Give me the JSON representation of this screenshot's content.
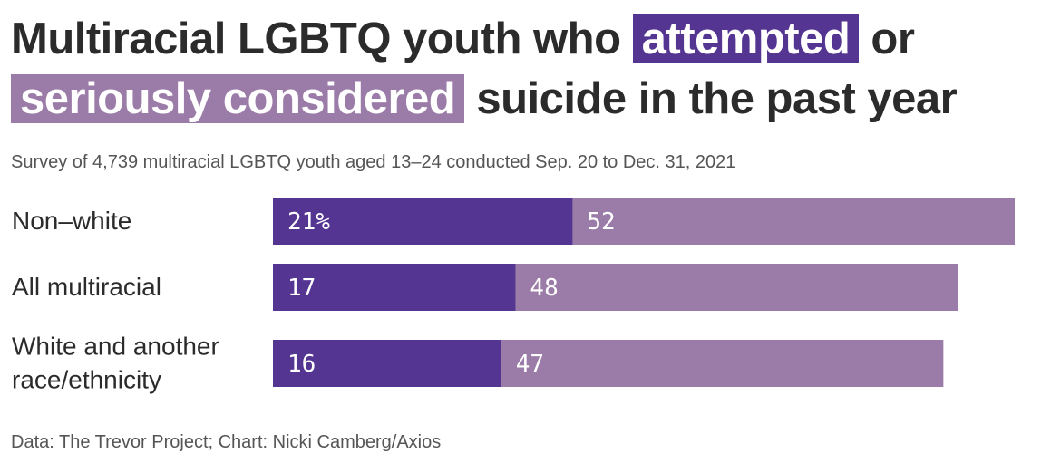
{
  "title": {
    "prefix": "Multiracial LGBTQ youth who",
    "attempted": "attempted",
    "mid": "or",
    "considered": "seriously considered",
    "suffix": "suicide in the past year"
  },
  "subtitle": "Survey of 4,739 multiracial LGBTQ youth aged 13–24 conducted Sep. 20 to Dec. 31, 2021",
  "source": "Data: The Trevor Project; Chart: Nicki Camberg/Axios",
  "colors": {
    "attempted": "#553592",
    "considered": "#9b7ba7",
    "text": "#2b2b2b",
    "muted": "#555555"
  },
  "chart_data": {
    "type": "bar",
    "orientation": "horizontal",
    "title": "Multiracial LGBTQ youth who attempted or seriously considered suicide in the past year",
    "categories": [
      [
        "Non–white"
      ],
      [
        "All multiracial"
      ],
      [
        "White and another",
        "race/ethnicity"
      ]
    ],
    "series": [
      {
        "name": "attempted",
        "values": [
          21,
          17,
          16
        ],
        "labels": [
          "21%",
          "17",
          "16"
        ]
      },
      {
        "name": "seriously considered",
        "values": [
          52,
          48,
          47
        ],
        "labels": [
          "52",
          "48",
          "47"
        ]
      }
    ],
    "xlim": [
      0,
      52
    ],
    "grid": false,
    "xlabel": "",
    "ylabel": ""
  }
}
